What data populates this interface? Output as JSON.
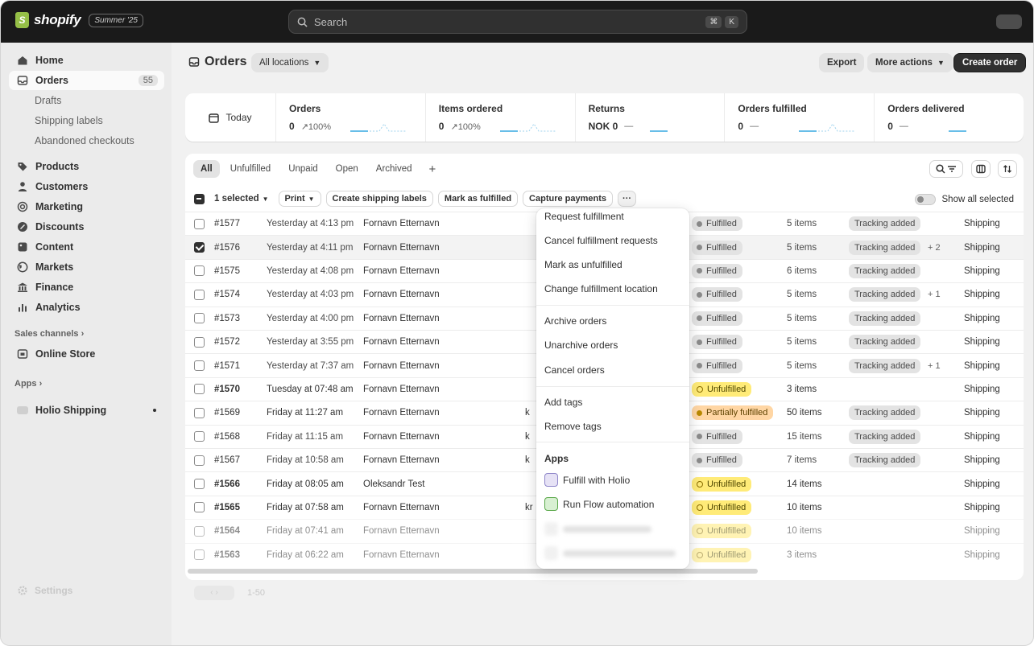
{
  "topbar": {
    "brand": "shopify",
    "edition": "Summer '25",
    "search_placeholder": "Search",
    "kbd_cmd": "⌘",
    "kbd_k": "K"
  },
  "sidebar": {
    "home": "Home",
    "orders": "Orders",
    "orders_count": "55",
    "drafts": "Drafts",
    "shipping_labels": "Shipping labels",
    "abandoned": "Abandoned checkouts",
    "products": "Products",
    "customers": "Customers",
    "marketing": "Marketing",
    "discounts": "Discounts",
    "content": "Content",
    "markets": "Markets",
    "finance": "Finance",
    "analytics": "Analytics",
    "sales_channels": "Sales channels",
    "online_store": "Online Store",
    "apps": "Apps",
    "holio_shipping": "Holio Shipping",
    "settings": "Settings"
  },
  "header": {
    "title": "Orders",
    "location": "All locations",
    "export": "Export",
    "more_actions": "More actions",
    "create_order": "Create order"
  },
  "stats": {
    "today": "Today",
    "items": [
      {
        "label": "Orders",
        "value": "0",
        "sub": "↗100%"
      },
      {
        "label": "Items ordered",
        "value": "0",
        "sub": "↗100%"
      },
      {
        "label": "Returns",
        "value": "NOK 0",
        "sub": "—"
      },
      {
        "label": "Orders fulfilled",
        "value": "0",
        "sub": "—"
      },
      {
        "label": "Orders delivered",
        "value": "0",
        "sub": "—"
      }
    ]
  },
  "tabs": [
    "All",
    "Unfulfilled",
    "Unpaid",
    "Open",
    "Archived"
  ],
  "bulk": {
    "selected": "1 selected",
    "print": "Print",
    "create_labels": "Create shipping labels",
    "mark_fulfilled": "Mark as fulfilled",
    "capture": "Capture payments",
    "more": "···",
    "show_all": "Show all selected"
  },
  "orders": [
    {
      "id": "#1577",
      "date": "Yesterday at 4:13 pm",
      "customer": "Fornavn Etternavn",
      "channel": "",
      "status": "Fulfilled",
      "items": "5 items",
      "tracking": "Tracking added",
      "extra": "",
      "method": "Shipping"
    },
    {
      "id": "#1576",
      "date": "Yesterday at 4:11 pm",
      "customer": "Fornavn Etternavn",
      "channel": "",
      "status": "Fulfilled",
      "items": "5 items",
      "tracking": "Tracking added",
      "extra": "+ 2",
      "method": "Shipping"
    },
    {
      "id": "#1575",
      "date": "Yesterday at 4:08 pm",
      "customer": "Fornavn Etternavn",
      "channel": "",
      "status": "Fulfilled",
      "items": "6 items",
      "tracking": "Tracking added",
      "extra": "",
      "method": "Shipping"
    },
    {
      "id": "#1574",
      "date": "Yesterday at 4:03 pm",
      "customer": "Fornavn Etternavn",
      "channel": "",
      "status": "Fulfilled",
      "items": "5 items",
      "tracking": "Tracking added",
      "extra": "+ 1",
      "method": "Shipping"
    },
    {
      "id": "#1573",
      "date": "Yesterday at 4:00 pm",
      "customer": "Fornavn Etternavn",
      "channel": "",
      "status": "Fulfilled",
      "items": "5 items",
      "tracking": "Tracking added",
      "extra": "",
      "method": "Shipping"
    },
    {
      "id": "#1572",
      "date": "Yesterday at 3:55 pm",
      "customer": "Fornavn Etternavn",
      "channel": "",
      "status": "Fulfilled",
      "items": "5 items",
      "tracking": "Tracking added",
      "extra": "",
      "method": "Shipping"
    },
    {
      "id": "#1571",
      "date": "Yesterday at 7:37 am",
      "customer": "Fornavn Etternavn",
      "channel": "",
      "status": "Fulfilled",
      "items": "5 items",
      "tracking": "Tracking added",
      "extra": "+ 1",
      "method": "Shipping"
    },
    {
      "id": "#1570",
      "date": "Tuesday at 07:48 am",
      "customer": "Fornavn Etternavn",
      "channel": "",
      "status": "Unfulfilled",
      "items": "3 items",
      "tracking": "",
      "extra": "",
      "method": "Shipping"
    },
    {
      "id": "#1569",
      "date": "Friday at 11:27 am",
      "customer": "Fornavn Etternavn",
      "channel": "k",
      "status": "Partially fulfilled",
      "items": "50 items",
      "tracking": "Tracking added",
      "extra": "",
      "method": "Shipping"
    },
    {
      "id": "#1568",
      "date": "Friday at 11:15 am",
      "customer": "Fornavn Etternavn",
      "channel": "k",
      "status": "Fulfilled",
      "items": "15 items",
      "tracking": "Tracking added",
      "extra": "",
      "method": "Shipping"
    },
    {
      "id": "#1567",
      "date": "Friday at 10:58 am",
      "customer": "Fornavn Etternavn",
      "channel": "k",
      "status": "Fulfilled",
      "items": "7 items",
      "tracking": "Tracking added",
      "extra": "",
      "method": "Shipping"
    },
    {
      "id": "#1566",
      "date": "Friday at 08:05 am",
      "customer": "Oleksandr Test",
      "channel": "",
      "status": "Unfulfilled",
      "items": "14 items",
      "tracking": "",
      "extra": "",
      "method": "Shipping"
    },
    {
      "id": "#1565",
      "date": "Friday at 07:58 am",
      "customer": "Fornavn Etternavn",
      "channel": "kr",
      "status": "Unfulfilled",
      "items": "10 items",
      "tracking": "",
      "extra": "",
      "method": "Shipping"
    },
    {
      "id": "#1564",
      "date": "Friday at 07:41 am",
      "customer": "Fornavn Etternavn",
      "channel": "",
      "status": "Unfulfilled",
      "items": "10 items",
      "tracking": "",
      "extra": "",
      "method": "Shipping"
    },
    {
      "id": "#1563",
      "date": "Friday at 06:22 am",
      "customer": "Fornavn Etternavn",
      "channel": "",
      "status": "Unfulfilled",
      "items": "3 items",
      "tracking": "",
      "extra": "",
      "method": "Shipping"
    }
  ],
  "menu": {
    "request": "Request fulfillment",
    "cancel_requests": "Cancel fulfillment requests",
    "mark_unfulfilled": "Mark as unfulfilled",
    "change_location": "Change fulfillment location",
    "archive": "Archive orders",
    "unarchive": "Unarchive orders",
    "cancel_orders": "Cancel orders",
    "add_tags": "Add tags",
    "remove_tags": "Remove tags",
    "apps_heading": "Apps",
    "fulfill_holio": "Fulfill with Holio",
    "run_flow": "Run Flow automation"
  },
  "pagination": {
    "range": "1-50"
  },
  "colors": {
    "topbar": "#1a1a1a",
    "unfulfilled_badge": "#ffeb78",
    "partial_badge": "#ffd6a4",
    "primary_button": "#303030"
  }
}
